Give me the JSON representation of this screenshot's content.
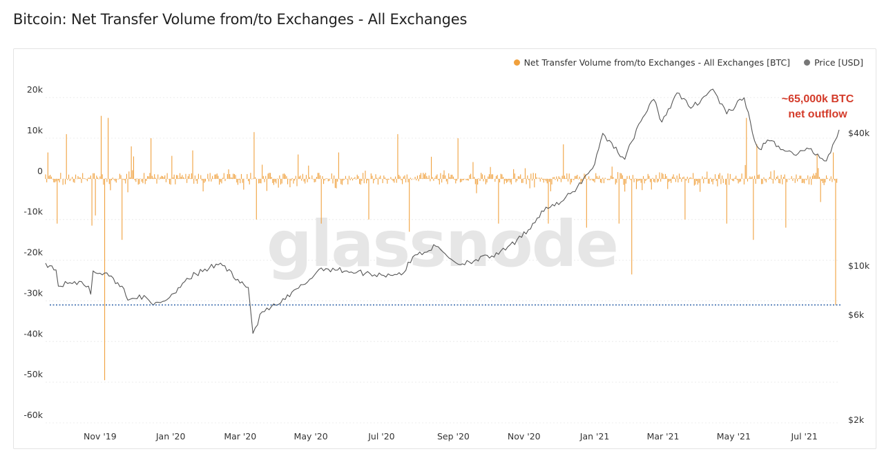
{
  "page": {
    "title": "Bitcoin: Net Transfer Volume from/to Exchanges - All Exchanges"
  },
  "watermark": "glassnode",
  "colors": {
    "flow": "#f0a03c",
    "price": "#555555",
    "reference_line": "#2b5fa6",
    "annotation": "#d43c2b",
    "legend_price_dot": "#777777"
  },
  "chart_data": {
    "type": "line",
    "title": "Bitcoin: Net Transfer Volume from/to Exchanges - All Exchanges",
    "legend_position": "top-right",
    "grid": true,
    "x_ticks": [
      "Nov '19",
      "Jan '20",
      "Mar '20",
      "May '20",
      "Jul '20",
      "Sep '20",
      "Nov '20",
      "Jan '21",
      "Mar '21",
      "May '21",
      "Jul '21"
    ],
    "xlim": [
      "2019-09-15",
      "2021-07-31"
    ],
    "y_left": {
      "ticks": [
        "20k",
        "10k",
        "0",
        "-10k",
        "-20k",
        "-30k",
        "-40k",
        "-50k",
        "-60k"
      ],
      "tick_values": [
        20000,
        10000,
        0,
        -10000,
        -20000,
        -30000,
        -40000,
        -50000,
        -60000
      ],
      "range": [
        -60000,
        27000
      ]
    },
    "y_right": {
      "ticks": [
        "$40k",
        "$10k",
        "$6k",
        "$2k"
      ],
      "tick_values": [
        40000,
        10000,
        6000,
        2000
      ],
      "scale": "log"
    },
    "series": [
      {
        "name": "Net Transfer Volume from/to Exchanges - All Exchanges [BTC]",
        "axis": "left",
        "style": "daily bars around zero",
        "notable_spikes": [
          {
            "date": "2019-09-17",
            "value": 6500
          },
          {
            "date": "2019-09-25",
            "value": -11000
          },
          {
            "date": "2019-10-03",
            "value": 11000
          },
          {
            "date": "2019-10-25",
            "value": -11500
          },
          {
            "date": "2019-10-28",
            "value": -9000
          },
          {
            "date": "2019-11-02",
            "value": 15500
          },
          {
            "date": "2019-11-05",
            "value": -49500
          },
          {
            "date": "2019-11-08",
            "value": 15000
          },
          {
            "date": "2019-11-20",
            "value": -15000
          },
          {
            "date": "2019-11-28",
            "value": 8000
          },
          {
            "date": "2019-12-15",
            "value": 10000
          },
          {
            "date": "2020-01-20",
            "value": 7000
          },
          {
            "date": "2020-03-13",
            "value": 11500
          },
          {
            "date": "2020-03-15",
            "value": -10000
          },
          {
            "date": "2020-04-20",
            "value": 6000
          },
          {
            "date": "2020-05-10",
            "value": -11000
          },
          {
            "date": "2020-05-25",
            "value": 6500
          },
          {
            "date": "2020-06-20",
            "value": -10000
          },
          {
            "date": "2020-07-15",
            "value": 11000
          },
          {
            "date": "2020-07-25",
            "value": -13000
          },
          {
            "date": "2020-09-05",
            "value": 10000
          },
          {
            "date": "2020-10-10",
            "value": -11000
          },
          {
            "date": "2020-11-22",
            "value": -11000
          },
          {
            "date": "2020-12-05",
            "value": 8500
          },
          {
            "date": "2020-12-25",
            "value": -12000
          },
          {
            "date": "2021-01-22",
            "value": -11000
          },
          {
            "date": "2021-02-02",
            "value": -23500
          },
          {
            "date": "2021-03-20",
            "value": -10000
          },
          {
            "date": "2021-04-25",
            "value": -11000
          },
          {
            "date": "2021-05-12",
            "value": 15000
          },
          {
            "date": "2021-05-18",
            "value": -15000
          },
          {
            "date": "2021-05-21",
            "value": 8500
          },
          {
            "date": "2021-06-15",
            "value": -12000
          },
          {
            "date": "2021-07-12",
            "value": 6000
          },
          {
            "date": "2021-07-26",
            "value": 6500
          },
          {
            "date": "2021-07-28",
            "value": -31000
          }
        ]
      },
      {
        "name": "Price [USD]",
        "axis": "right",
        "points": [
          {
            "date": "2019-09-15",
            "value": 10300
          },
          {
            "date": "2019-09-24",
            "value": 9600
          },
          {
            "date": "2019-09-26",
            "value": 8100
          },
          {
            "date": "2019-10-10",
            "value": 8500
          },
          {
            "date": "2019-10-22",
            "value": 8100
          },
          {
            "date": "2019-10-24",
            "value": 7450
          },
          {
            "date": "2019-10-26",
            "value": 9500
          },
          {
            "date": "2019-11-05",
            "value": 9300
          },
          {
            "date": "2019-11-20",
            "value": 8100
          },
          {
            "date": "2019-11-25",
            "value": 7000
          },
          {
            "date": "2019-12-05",
            "value": 7400
          },
          {
            "date": "2019-12-17",
            "value": 6650
          },
          {
            "date": "2019-12-31",
            "value": 7200
          },
          {
            "date": "2020-01-15",
            "value": 8800
          },
          {
            "date": "2020-02-13",
            "value": 10300
          },
          {
            "date": "2020-02-28",
            "value": 8700
          },
          {
            "date": "2020-03-08",
            "value": 8000
          },
          {
            "date": "2020-03-12",
            "value": 4950
          },
          {
            "date": "2020-03-20",
            "value": 6200
          },
          {
            "date": "2020-04-05",
            "value": 6800
          },
          {
            "date": "2020-04-30",
            "value": 8700
          },
          {
            "date": "2020-05-10",
            "value": 9800
          },
          {
            "date": "2020-06-01",
            "value": 9500
          },
          {
            "date": "2020-07-01",
            "value": 9100
          },
          {
            "date": "2020-07-20",
            "value": 9300
          },
          {
            "date": "2020-07-28",
            "value": 11000
          },
          {
            "date": "2020-08-17",
            "value": 12300
          },
          {
            "date": "2020-09-05",
            "value": 10200
          },
          {
            "date": "2020-10-10",
            "value": 11300
          },
          {
            "date": "2020-10-30",
            "value": 13500
          },
          {
            "date": "2020-11-20",
            "value": 18500
          },
          {
            "date": "2020-12-01",
            "value": 19000
          },
          {
            "date": "2020-12-17",
            "value": 22800
          },
          {
            "date": "2021-01-01",
            "value": 29000
          },
          {
            "date": "2021-01-08",
            "value": 40000
          },
          {
            "date": "2021-01-27",
            "value": 30500
          },
          {
            "date": "2021-02-08",
            "value": 44000
          },
          {
            "date": "2021-02-21",
            "value": 57000
          },
          {
            "date": "2021-02-28",
            "value": 45000
          },
          {
            "date": "2021-03-13",
            "value": 61000
          },
          {
            "date": "2021-03-25",
            "value": 52000
          },
          {
            "date": "2021-04-13",
            "value": 63500
          },
          {
            "date": "2021-04-25",
            "value": 49000
          },
          {
            "date": "2021-05-10",
            "value": 58000
          },
          {
            "date": "2021-05-19",
            "value": 37000
          },
          {
            "date": "2021-05-23",
            "value": 34000
          },
          {
            "date": "2021-06-01",
            "value": 37000
          },
          {
            "date": "2021-06-22",
            "value": 32000
          },
          {
            "date": "2021-07-05",
            "value": 34000
          },
          {
            "date": "2021-07-20",
            "value": 30000
          },
          {
            "date": "2021-07-31",
            "value": 41500
          }
        ]
      }
    ],
    "reference_line": {
      "axis": "left",
      "value": -31000,
      "style": "dotted"
    },
    "annotation": {
      "lines": [
        "~65,000k BTC",
        "net outflow"
      ]
    }
  }
}
